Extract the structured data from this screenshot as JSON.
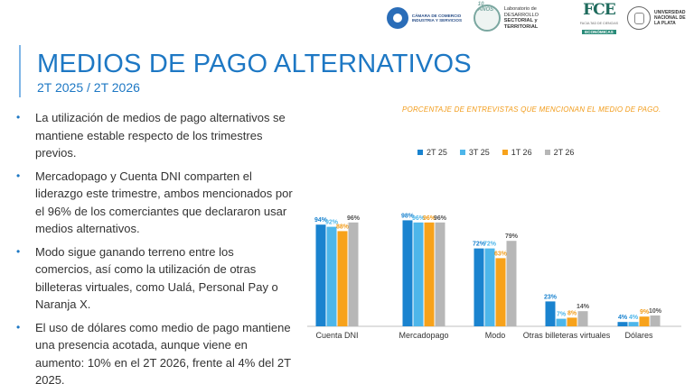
{
  "logos": {
    "cac_text": "CÁMARA DE COMERCIO INDUSTRIA Y SERVICIOS",
    "lab_badge": "10 AÑOS",
    "lab_text_1": "Laboratorio de DESARROLLO",
    "lab_text_2": "SECTORIAL y TERRITORIAL",
    "fce_mark": "FCE",
    "fce_sub": "FACULTAD DE CIENCIAS",
    "fce_tag": "ECONÓMICAS",
    "unlp_text": "UNIVERSIDAD NACIONAL DE LA PLATA"
  },
  "title": "MEDIOS DE PAGO ALTERNATIVOS",
  "subtitle": "2T 2025 / 2T 2026",
  "bullets": [
    "La utilización de medios de pago alternativos se mantiene estable respecto de los trimestres previos.",
    "Mercadopago y Cuenta DNI comparten el liderazgo este trimestre, ambos mencionados por el 96% de los comerciantes que declararon usar medios alternativos.",
    "Modo sigue ganando terreno entre los comercios, así como la utilización de otras billeteras virtuales, como Ualá, Personal Pay o Naranja X.",
    "El uso de dólares como medio de pago mantiene una presencia acotada, aunque viene en aumento: 10% en el 2T 2026, frente al 4% del 2T 2025."
  ],
  "chart_data": {
    "type": "bar",
    "title": "PORCENTAJE DE ENTREVISTAS QUE MENCIONAN EL MEDIO DE PAGO.",
    "categories": [
      "Cuenta DNI",
      "Mercadopago",
      "Modo",
      "Otras billeteras virtuales",
      "Dólares"
    ],
    "series": [
      {
        "name": "2T 25",
        "color": "#1a83cf",
        "values": [
          94,
          98,
          72,
          23,
          4
        ]
      },
      {
        "name": "3T 25",
        "color": "#4db6ea",
        "values": [
          92,
          96,
          72,
          7,
          4
        ]
      },
      {
        "name": "1T 26",
        "color": "#f7a21b",
        "values": [
          88,
          96,
          63,
          8,
          9
        ]
      },
      {
        "name": "2T 26",
        "color": "#b7b7b7",
        "values": [
          96,
          96,
          79,
          14,
          10
        ]
      }
    ],
    "value_suffix": "%",
    "ylim": [
      0,
      100
    ],
    "grid": false,
    "legend": "top"
  }
}
